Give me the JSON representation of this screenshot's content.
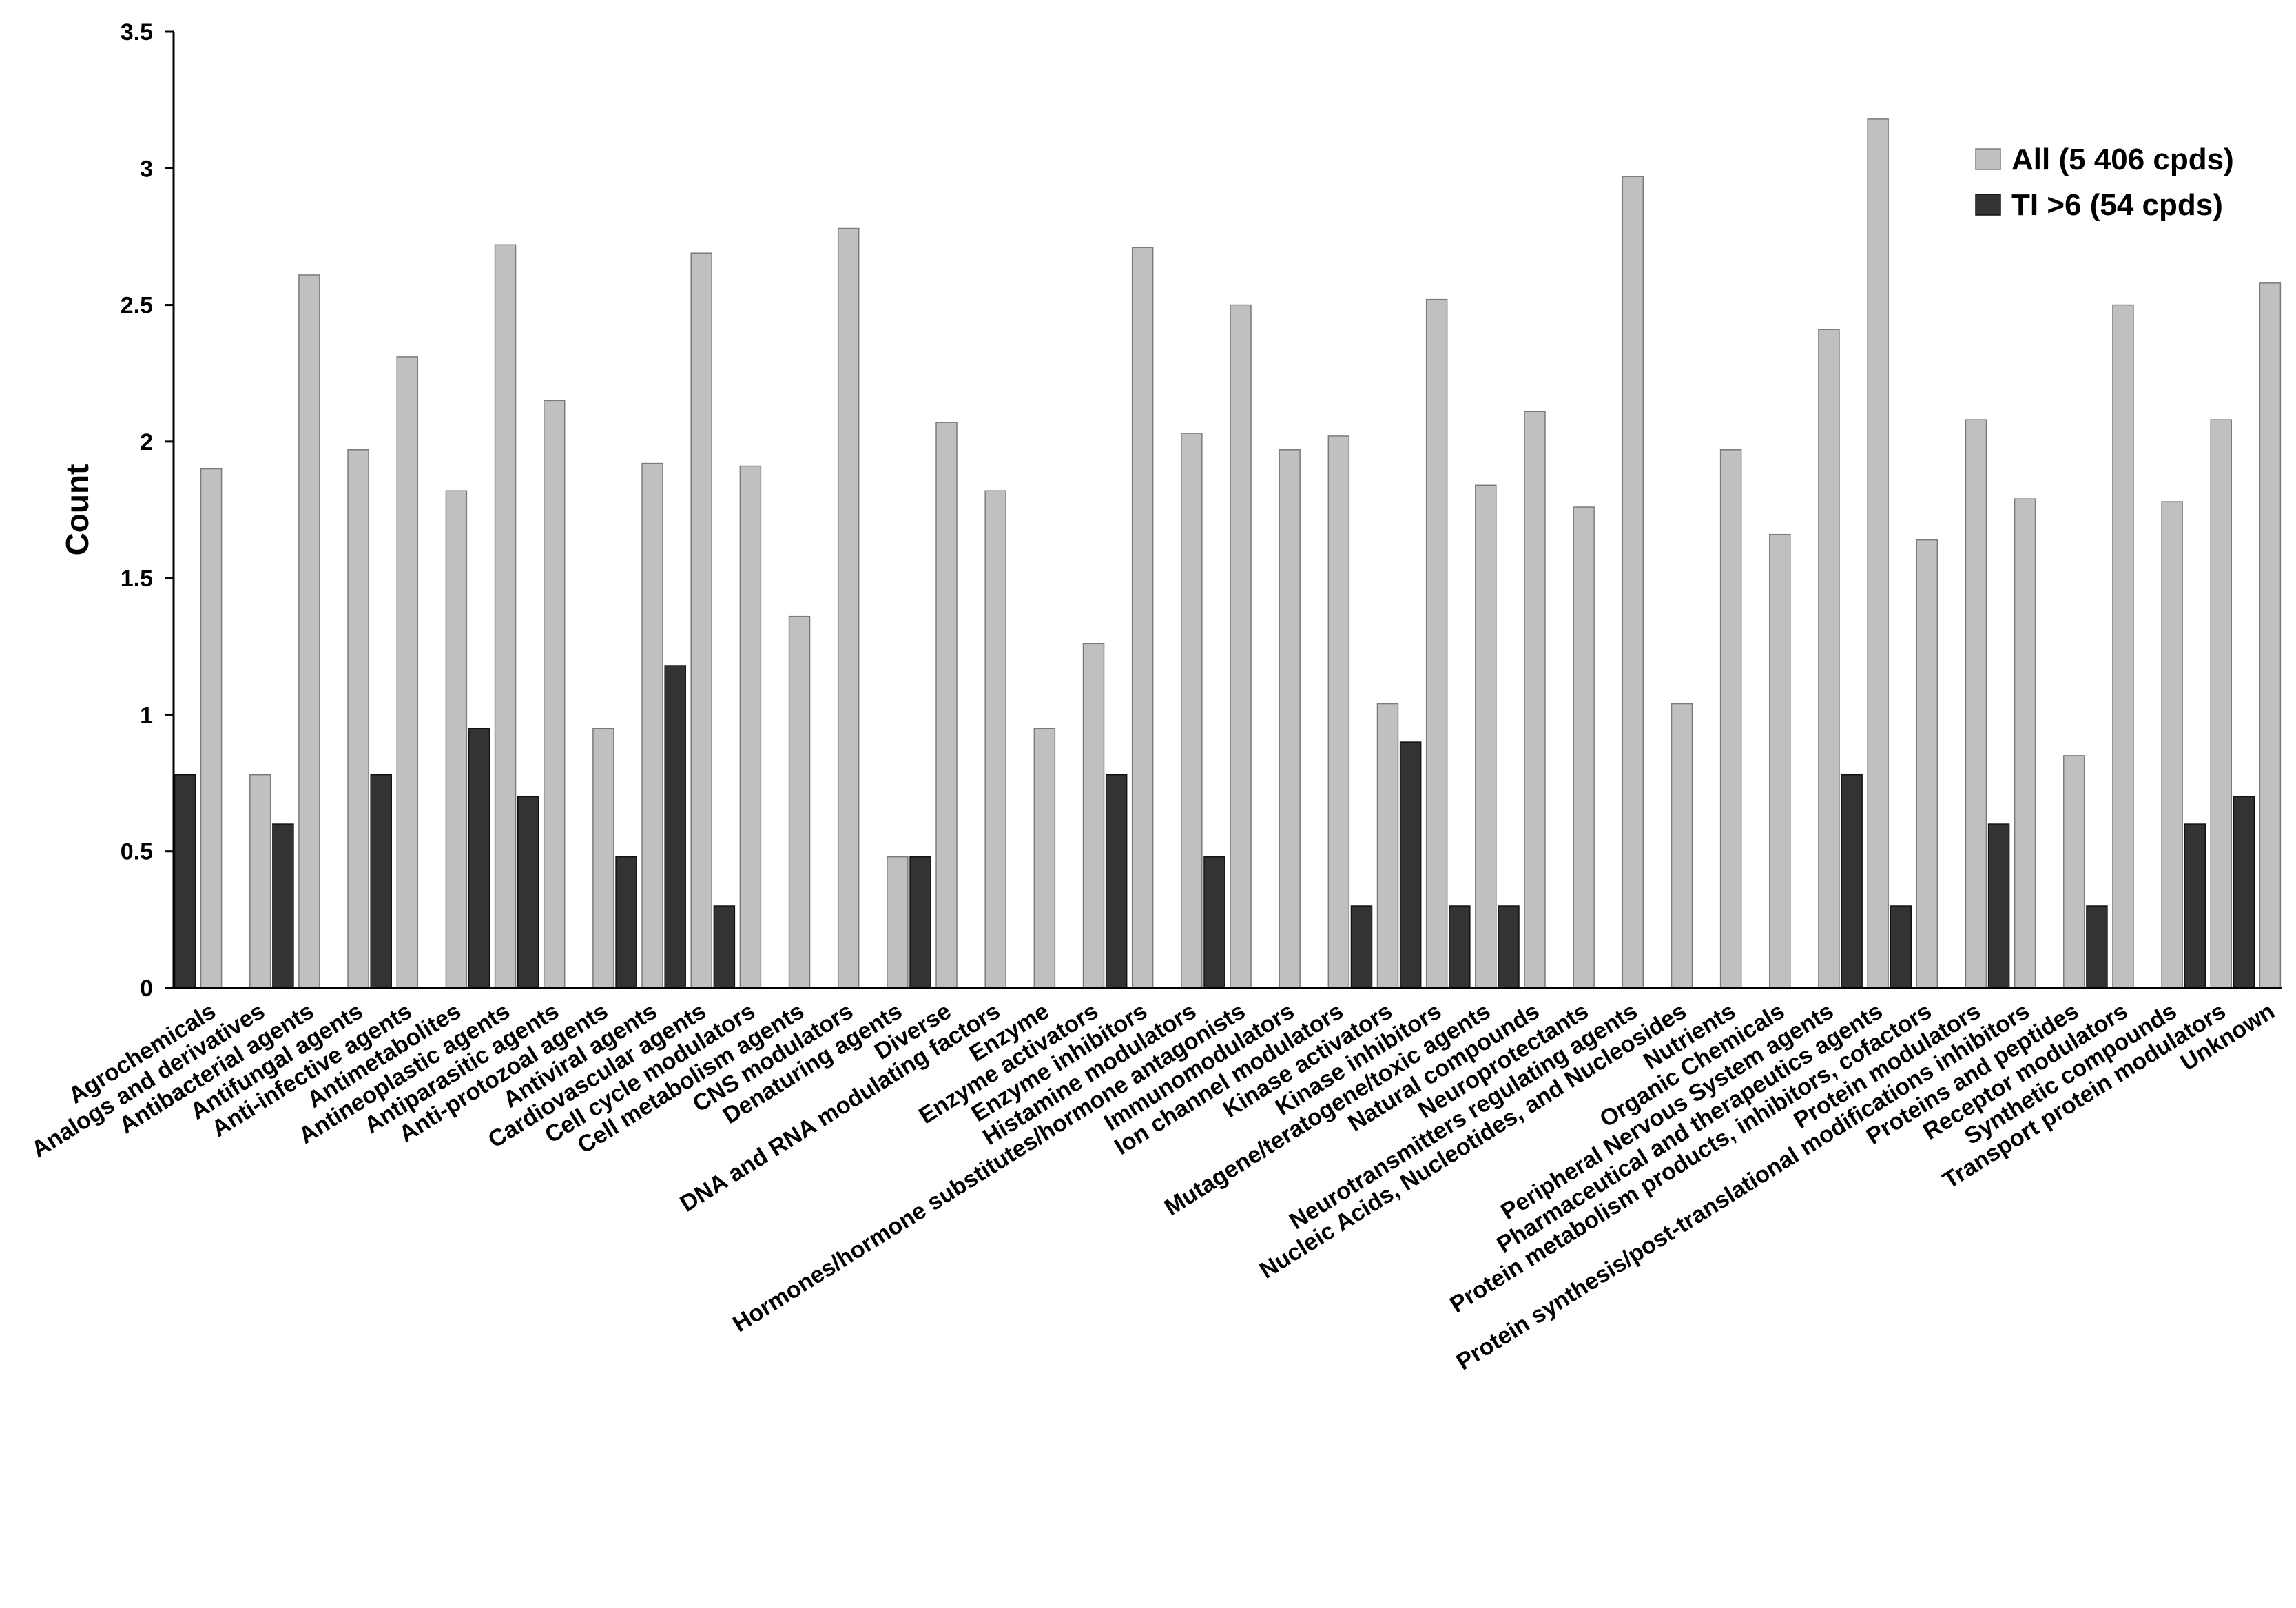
{
  "chart_data": {
    "type": "bar",
    "title": "",
    "xlabel": "",
    "ylabel": "Count",
    "ylim": [
      0,
      3.5
    ],
    "yticks": [
      "0",
      "0.5",
      "1",
      "1.5",
      "2",
      "2.5",
      "3",
      "3.5"
    ],
    "grid": false,
    "legend_position": "top-right",
    "categories": [
      "Agrochemicals",
      "Analogs and derivatives",
      "Antibacterial agents",
      "Antifungal agents",
      "Anti-infective agents",
      "Antimetabolites",
      "Antineoplastic agents",
      "Antiparasitic agents",
      "Anti-protozoal agents",
      "Antiviral agents",
      "Cardiovascular agents",
      "Cell cycle modulators",
      "Cell metabolism agents",
      "CNS modulators",
      "Denaturing agents",
      "Diverse",
      "DNA and RNA modulating factors",
      "Enzyme",
      "Enzyme activators",
      "Enzyme inhibitors",
      "Histamine modulators",
      "Hormones/hormone substitutes/hormone antagonists",
      "Immunomodulators",
      "Ion channel modulators",
      "Kinase activators",
      "Kinase inhibitors",
      "Mutagene/teratogene/toxic agents",
      "Natural compounds",
      "Neuroprotectants",
      "Neurotransmitters regulating agents",
      "Nucleic Acids, Nucleotides, and Nucleosides",
      "Nutrients",
      "Organic Chemicals",
      "Peripheral Nervous System agents",
      "Pharmaceutical and therapeutics agents",
      "Protein metabolism products, inhibitors, cofactors",
      "Protein modulators",
      "Protein synthesis/post-translational modifications inhibitors",
      "Proteins and peptides",
      "Receptor modulators",
      "Synthetic compounds",
      "Transport protein modulators",
      "Unknown"
    ],
    "series": [
      {
        "name": "All (5 406 cpds)",
        "color": "#c0c0c0",
        "values": [
          1.9,
          0.78,
          2.61,
          1.97,
          2.31,
          1.82,
          2.72,
          2.15,
          0.95,
          1.92,
          2.69,
          1.91,
          1.36,
          2.78,
          0.48,
          2.07,
          1.82,
          0.95,
          1.26,
          2.71,
          2.03,
          2.5,
          1.97,
          2.02,
          1.04,
          2.52,
          1.84,
          2.11,
          1.76,
          2.97,
          1.04,
          1.97,
          1.66,
          2.41,
          3.18,
          1.64,
          2.08,
          1.79,
          0.85,
          2.5,
          1.78,
          2.08,
          2.58
        ]
      },
      {
        "name": "TI >6 (54 cpds)",
        "color": "#333333",
        "values": [
          0.78,
          0,
          0.6,
          0,
          0.78,
          0,
          0.95,
          0.7,
          0,
          0.48,
          1.18,
          0.3,
          0,
          0,
          0,
          0.48,
          0,
          0,
          0,
          0.78,
          0,
          0.48,
          0,
          0,
          0.3,
          0.9,
          0.3,
          0.3,
          0,
          0,
          0,
          0,
          0,
          0,
          0.78,
          0.3,
          0,
          0.6,
          0,
          0.3,
          0,
          0.6,
          0.7
        ]
      }
    ]
  }
}
